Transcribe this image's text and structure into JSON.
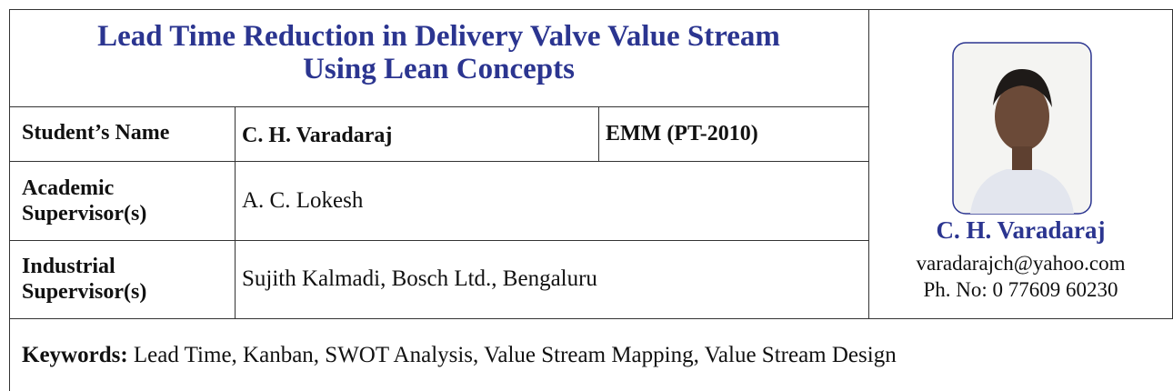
{
  "header": {
    "title_lines": [
      "Lead Time Reduction in Delivery Valve Value Stream",
      "Using Lean Concepts"
    ]
  },
  "table": {
    "rows": [
      [
        "Student’s Name",
        "C. H. Varadaraj",
        "EMM (PT-2010)"
      ],
      [
        "Academic Supervisor(s)",
        "A. C. Lokesh"
      ],
      [
        "Industrial Supervisor(s)",
        "Sujith Kalmadi, Bosch Ltd., Bengaluru"
      ]
    ]
  },
  "profile": {
    "name": "C. H. Varadaraj",
    "email": "varadarajch@yahoo.com",
    "phone": "Ph. No: 0 77609 60230"
  },
  "keywords": {
    "label": "Keywords:",
    "text": "Lead Time, Kanban, SWOT Analysis, Value Stream Mapping, Value Stream Design"
  }
}
